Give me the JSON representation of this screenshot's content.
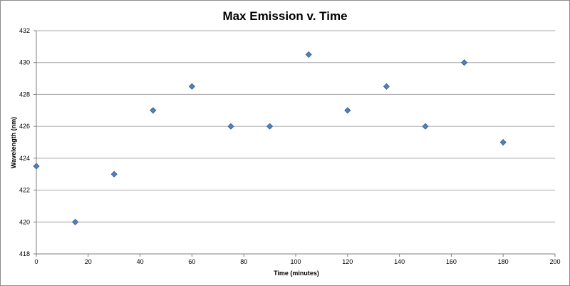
{
  "chart_data": {
    "type": "scatter",
    "title": "Max Emission v. Time",
    "xlabel": "Time (minutes)",
    "ylabel": "Wavelength (nm)",
    "xlim": [
      0,
      200
    ],
    "ylim": [
      418,
      432
    ],
    "x_ticks": [
      "0",
      "20",
      "40",
      "60",
      "80",
      "100",
      "120",
      "140",
      "160",
      "180",
      "200"
    ],
    "y_ticks": [
      "418",
      "420",
      "422",
      "424",
      "426",
      "428",
      "430",
      "432"
    ],
    "grid": "horizontal",
    "legend": "none",
    "marker": "diamond",
    "marker_color": "#4f81bd",
    "series": [
      {
        "x": [
          0,
          15,
          30,
          45,
          60,
          75,
          90,
          105,
          120,
          135,
          150,
          165,
          180
        ],
        "y": [
          423.5,
          420,
          423,
          427,
          428.5,
          426,
          426,
          430.5,
          427,
          428.5,
          426,
          430,
          425
        ]
      }
    ]
  }
}
